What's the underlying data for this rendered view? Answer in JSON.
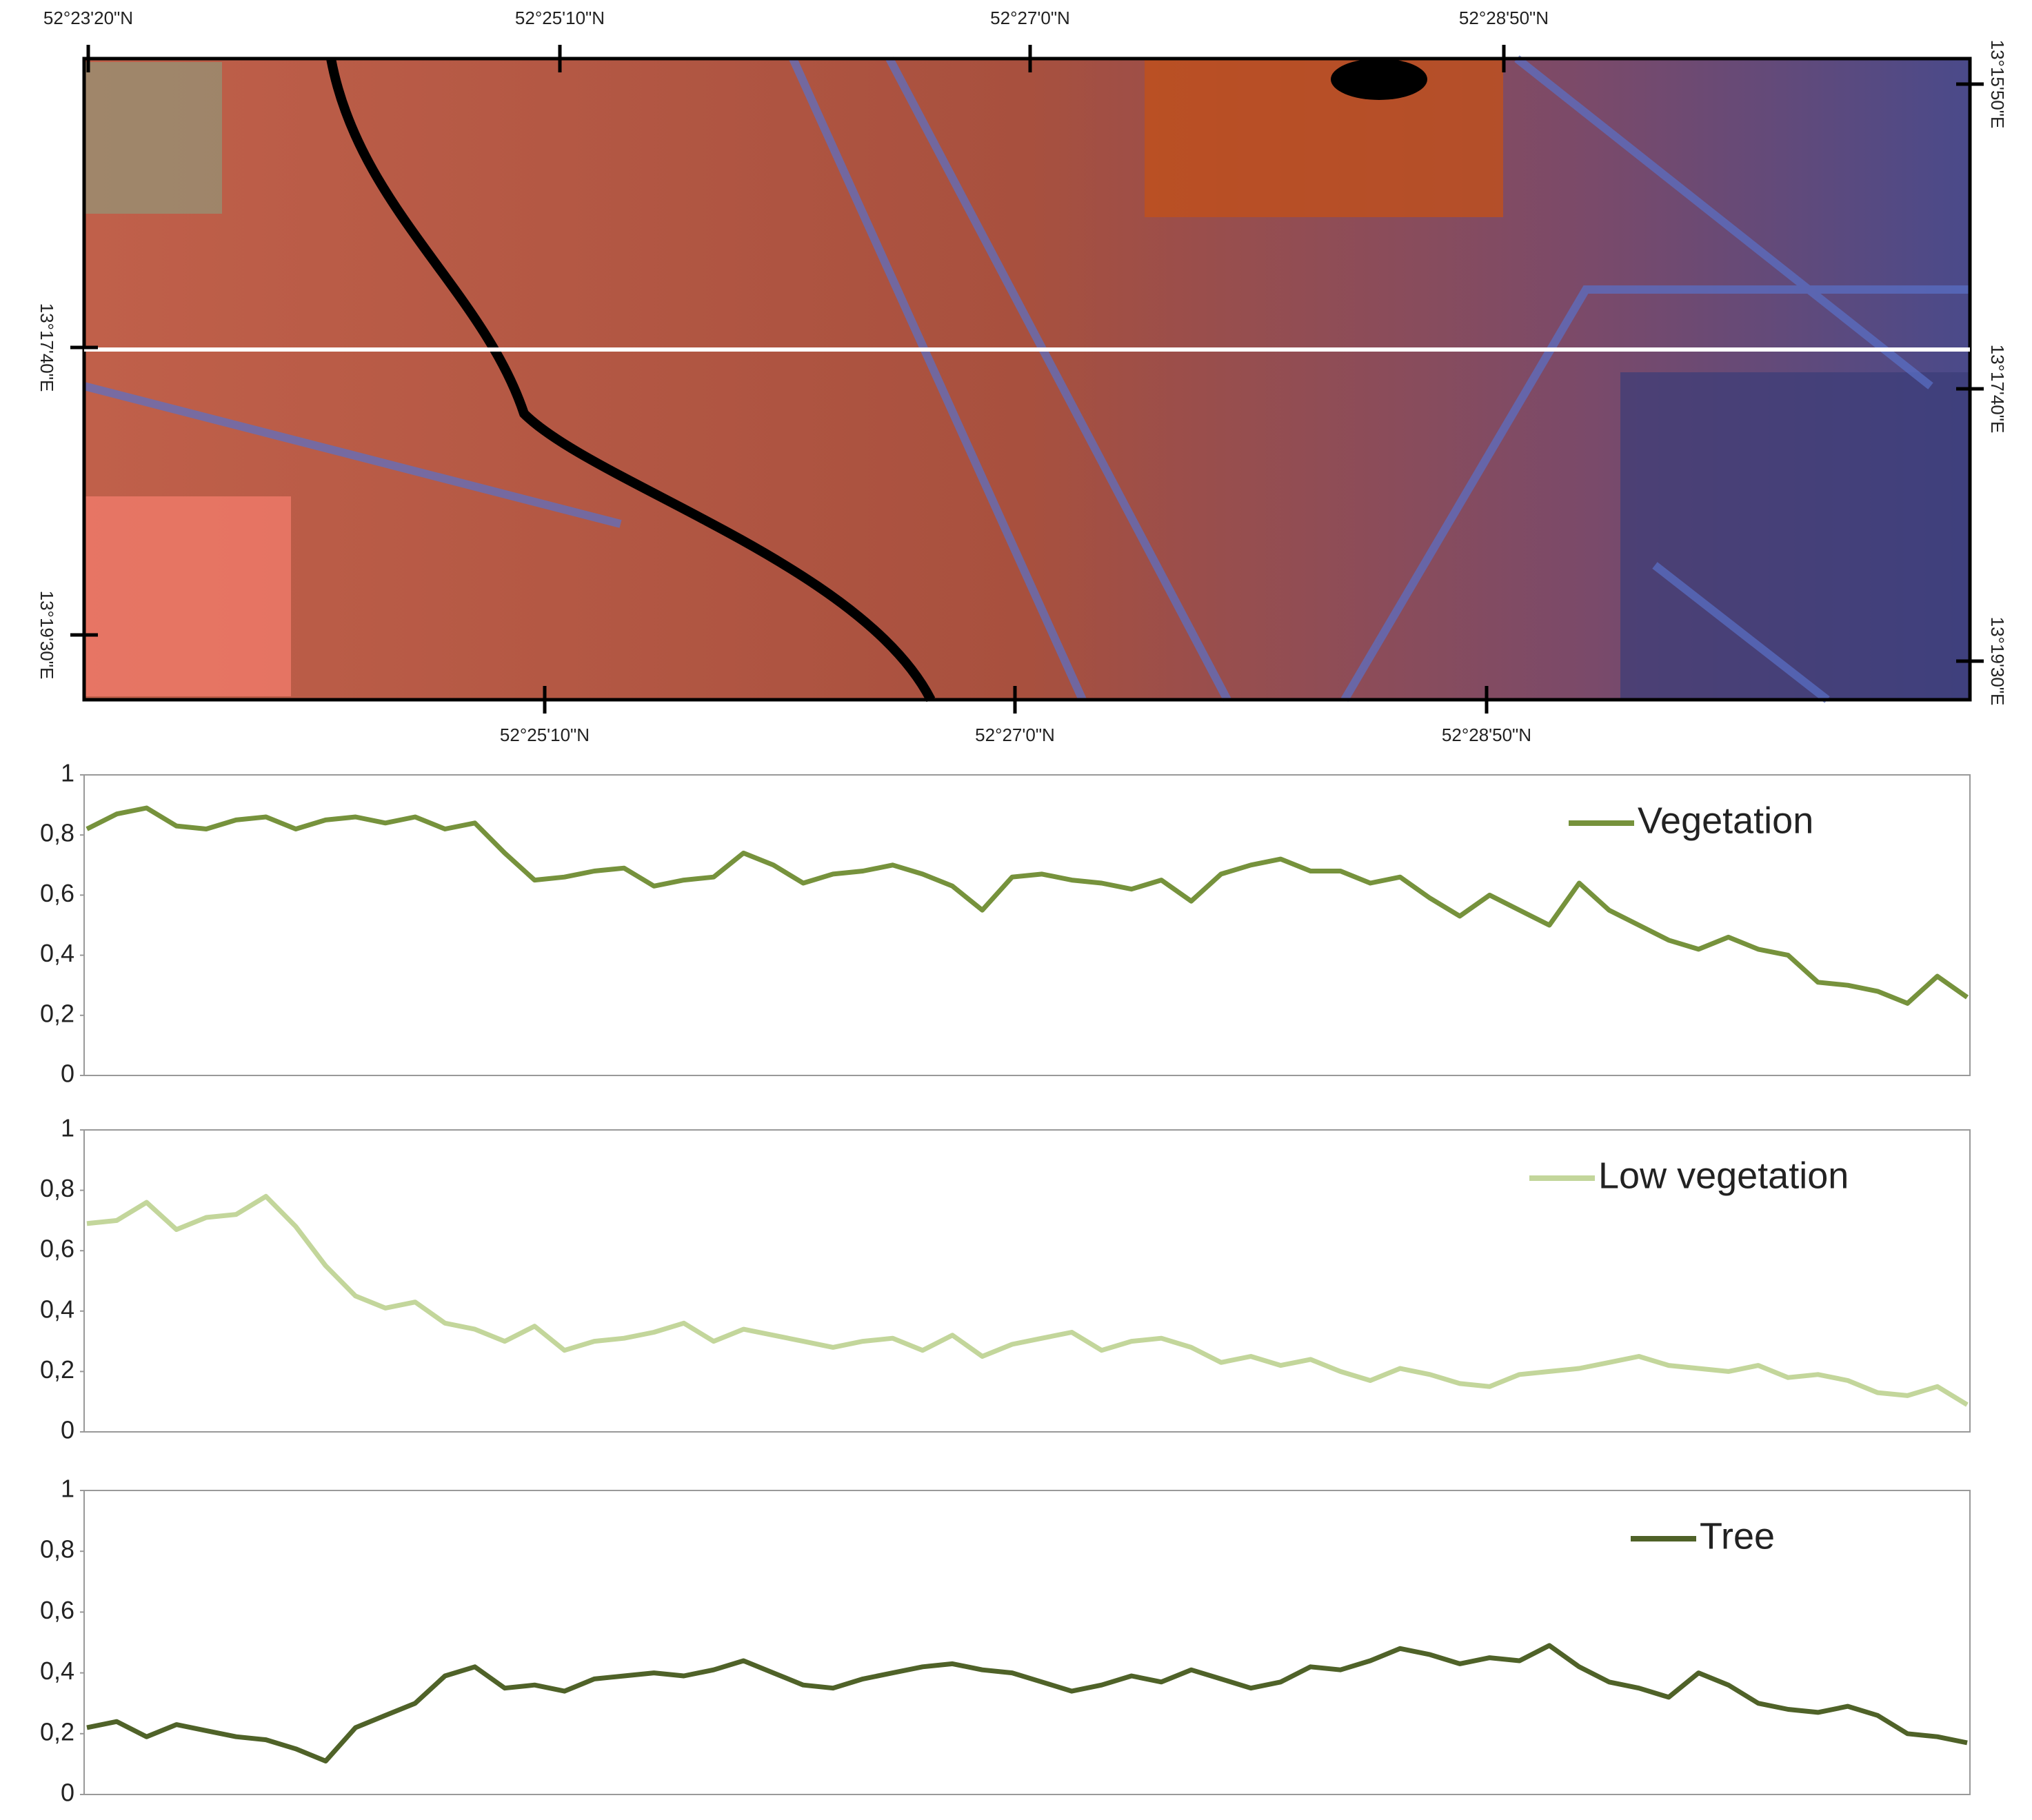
{
  "map": {
    "top_labels": [
      "52°23'20\"N",
      "52°25'10\"N",
      "52°27'0\"N",
      "52°28'50\"N"
    ],
    "bottom_labels": [
      "52°25'10\"N",
      "52°27'0\"N",
      "52°28'50\"N"
    ],
    "left_labels": [
      "13°17'40\"E",
      "13°19'30\"E"
    ],
    "right_labels": [
      "13°15'50\"E",
      "13°17'40\"E",
      "13°19'30\"E"
    ]
  },
  "chart_data": [
    {
      "type": "line",
      "ylim": [
        0,
        1
      ],
      "yticks": [
        0,
        {
          "value": 0.2,
          "label": "0,2"
        },
        {
          "value": 0.4,
          "label": "0,4"
        },
        {
          "value": 0.6,
          "label": "0,6"
        },
        {
          "value": 0.8,
          "label": "0,8"
        },
        1
      ],
      "legend": "upper right",
      "series": [
        {
          "name": "Vegetation",
          "color": "#76923c",
          "values": [
            0.82,
            0.87,
            0.89,
            0.83,
            0.82,
            0.85,
            0.86,
            0.82,
            0.85,
            0.86,
            0.84,
            0.86,
            0.82,
            0.84,
            0.74,
            0.65,
            0.66,
            0.68,
            0.69,
            0.63,
            0.65,
            0.66,
            0.74,
            0.7,
            0.64,
            0.67,
            0.68,
            0.7,
            0.67,
            0.63,
            0.55,
            0.66,
            0.67,
            0.65,
            0.64,
            0.62,
            0.65,
            0.58,
            0.67,
            0.7,
            0.72,
            0.68,
            0.68,
            0.64,
            0.66,
            0.59,
            0.53,
            0.6,
            0.55,
            0.5,
            0.64,
            0.55,
            0.5,
            0.45,
            0.42,
            0.46,
            0.42,
            0.4,
            0.31,
            0.3,
            0.28,
            0.24,
            0.33,
            0.26
          ]
        }
      ]
    },
    {
      "type": "line",
      "ylim": [
        0,
        1
      ],
      "yticks": [
        0,
        {
          "value": 0.2,
          "label": "0,2"
        },
        {
          "value": 0.4,
          "label": "0,4"
        },
        {
          "value": 0.6,
          "label": "0,6"
        },
        {
          "value": 0.8,
          "label": "0,8"
        },
        1
      ],
      "legend": "upper right",
      "series": [
        {
          "name": "Low vegetation",
          "color": "#c3d69b",
          "values": [
            0.69,
            0.7,
            0.76,
            0.67,
            0.71,
            0.72,
            0.78,
            0.68,
            0.55,
            0.45,
            0.41,
            0.43,
            0.36,
            0.34,
            0.3,
            0.35,
            0.27,
            0.3,
            0.31,
            0.33,
            0.36,
            0.3,
            0.34,
            0.32,
            0.3,
            0.28,
            0.3,
            0.31,
            0.27,
            0.32,
            0.25,
            0.29,
            0.31,
            0.33,
            0.27,
            0.3,
            0.31,
            0.28,
            0.23,
            0.25,
            0.22,
            0.24,
            0.2,
            0.17,
            0.21,
            0.19,
            0.16,
            0.15,
            0.19,
            0.2,
            0.21,
            0.23,
            0.25,
            0.22,
            0.21,
            0.2,
            0.22,
            0.18,
            0.19,
            0.17,
            0.13,
            0.12,
            0.15,
            0.09
          ]
        }
      ]
    },
    {
      "type": "line",
      "ylim": [
        0,
        1
      ],
      "yticks": [
        0,
        {
          "value": 0.2,
          "label": "0,2"
        },
        {
          "value": 0.4,
          "label": "0,4"
        },
        {
          "value": 0.6,
          "label": "0,6"
        },
        {
          "value": 0.8,
          "label": "0,8"
        },
        1
      ],
      "legend": "upper right",
      "series": [
        {
          "name": "Tree",
          "color": "#4f6228",
          "values": [
            0.22,
            0.24,
            0.19,
            0.23,
            0.21,
            0.19,
            0.18,
            0.15,
            0.11,
            0.22,
            0.26,
            0.3,
            0.39,
            0.42,
            0.35,
            0.36,
            0.34,
            0.38,
            0.39,
            0.4,
            0.39,
            0.41,
            0.44,
            0.4,
            0.36,
            0.35,
            0.38,
            0.4,
            0.42,
            0.43,
            0.41,
            0.4,
            0.37,
            0.34,
            0.36,
            0.39,
            0.37,
            0.41,
            0.38,
            0.35,
            0.37,
            0.42,
            0.41,
            0.44,
            0.48,
            0.46,
            0.43,
            0.45,
            0.44,
            0.49,
            0.42,
            0.37,
            0.35,
            0.32,
            0.4,
            0.36,
            0.3,
            0.28,
            0.27,
            0.29,
            0.26,
            0.2,
            0.19,
            0.17
          ]
        }
      ]
    }
  ]
}
